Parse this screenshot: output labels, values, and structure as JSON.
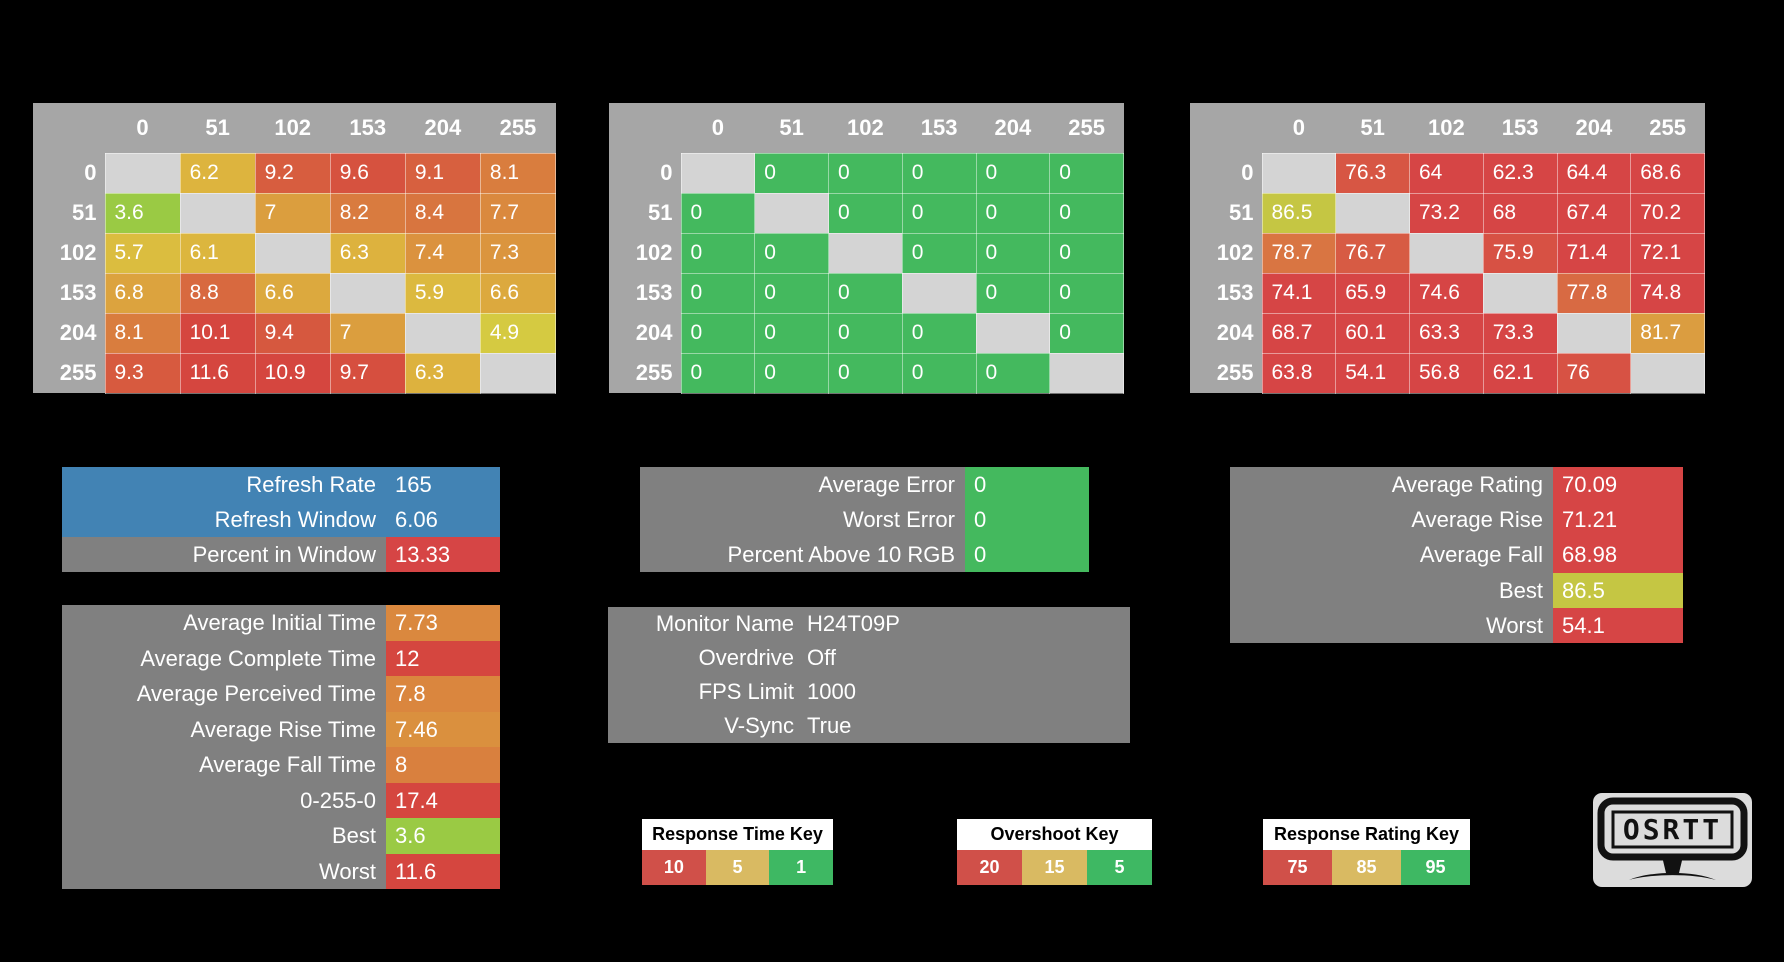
{
  "colors": {
    "background": "#000000",
    "header_grey": "#a6a6a6",
    "box_grey": "#808080",
    "diagonal_grey": "#d4d4d4",
    "blue": "#4283b4",
    "red": "#d64545",
    "green": "#44b95e",
    "key_red": "#d05049",
    "key_tan": "#d9ba62",
    "key_green": "#3eb863"
  },
  "scales": {
    "response_time": {
      "stops": [
        {
          "v": 1,
          "c": "#52c03a"
        },
        {
          "v": 3.6,
          "c": "#9aca44"
        },
        {
          "v": 5,
          "c": "#d9ca41"
        },
        {
          "v": 6.3,
          "c": "#ddb23e"
        },
        {
          "v": 10,
          "c": "#d5463f"
        }
      ]
    },
    "overshoot": {
      "stops": [
        {
          "v": 5,
          "c": "#44b95e"
        },
        {
          "v": 15,
          "c": "#d9ba62"
        },
        {
          "v": 20,
          "c": "#d05049"
        }
      ]
    },
    "response_rating": {
      "stops": [
        {
          "v": 75,
          "c": "#d64545"
        },
        {
          "v": 85,
          "c": "#ddc83e"
        },
        {
          "v": 95,
          "c": "#3fb95f"
        }
      ]
    }
  },
  "tables": {
    "axis": [
      "0",
      "51",
      "102",
      "153",
      "204",
      "255"
    ],
    "response_time": {
      "type": "heatmap",
      "scale": "response_time",
      "rows": [
        [
          null,
          6.2,
          9.2,
          9.6,
          9.1,
          8.1
        ],
        [
          3.6,
          null,
          7,
          8.2,
          8.4,
          7.7
        ],
        [
          5.7,
          6.1,
          null,
          6.3,
          7.4,
          7.3
        ],
        [
          6.8,
          8.8,
          6.6,
          null,
          5.9,
          6.6
        ],
        [
          8.1,
          10.1,
          9.4,
          7,
          null,
          4.9
        ],
        [
          9.3,
          11.6,
          10.9,
          9.7,
          6.3,
          null
        ]
      ]
    },
    "overshoot": {
      "type": "heatmap",
      "scale": "overshoot",
      "rows": [
        [
          null,
          0,
          0,
          0,
          0,
          0
        ],
        [
          0,
          null,
          0,
          0,
          0,
          0
        ],
        [
          0,
          0,
          null,
          0,
          0,
          0
        ],
        [
          0,
          0,
          0,
          null,
          0,
          0
        ],
        [
          0,
          0,
          0,
          0,
          null,
          0
        ],
        [
          0,
          0,
          0,
          0,
          0,
          null
        ]
      ]
    },
    "response_rating": {
      "type": "heatmap",
      "scale": "response_rating",
      "rows": [
        [
          null,
          76.3,
          64,
          62.3,
          64.4,
          68.6
        ],
        [
          86.5,
          null,
          73.2,
          68,
          67.4,
          70.2
        ],
        [
          78.7,
          76.7,
          null,
          75.9,
          71.4,
          72.1
        ],
        [
          74.1,
          65.9,
          74.6,
          null,
          77.8,
          74.8
        ],
        [
          68.7,
          60.1,
          63.3,
          73.3,
          null,
          81.7
        ],
        [
          63.8,
          54.1,
          56.8,
          62.1,
          76,
          null
        ]
      ]
    }
  },
  "stat_boxes": {
    "refresh": {
      "rows": [
        {
          "label": "Refresh Rate",
          "value": "165",
          "row_bg": "#4283b4"
        },
        {
          "label": "Refresh Window",
          "value": "6.06",
          "row_bg": "#4283b4"
        },
        {
          "label": "Percent in Window",
          "value": "13.33",
          "value_bg": "#d64545"
        }
      ]
    },
    "times": {
      "rows": [
        {
          "label": "Average Initial Time",
          "value": 7.73,
          "scale": "response_time"
        },
        {
          "label": "Average Complete Time",
          "value": 12,
          "scale": "response_time"
        },
        {
          "label": "Average Perceived Time",
          "value": 7.8,
          "scale": "response_time"
        },
        {
          "label": "Average Rise Time",
          "value": 7.46,
          "scale": "response_time"
        },
        {
          "label": "Average Fall Time",
          "value": 8,
          "scale": "response_time"
        },
        {
          "label": "0-255-0",
          "value": 17.4,
          "scale": "response_time"
        },
        {
          "label": "Best",
          "value": 3.6,
          "scale": "response_time"
        },
        {
          "label": "Worst",
          "value": 11.6,
          "scale": "response_time"
        }
      ]
    },
    "errors": {
      "rows": [
        {
          "label": "Average Error",
          "value": 0,
          "scale": "overshoot"
        },
        {
          "label": "Worst Error",
          "value": 0,
          "scale": "overshoot"
        },
        {
          "label": "Percent Above 10 RGB",
          "value": 0,
          "scale": "overshoot"
        }
      ]
    },
    "monitor": {
      "rows": [
        {
          "label": "Monitor Name",
          "value": "H24T09P"
        },
        {
          "label": "Overdrive",
          "value": "Off"
        },
        {
          "label": "FPS Limit",
          "value": "1000"
        },
        {
          "label": "V-Sync",
          "value": "True"
        }
      ]
    },
    "ratings": {
      "rows": [
        {
          "label": "Average Rating",
          "value": 70.09,
          "scale": "response_rating"
        },
        {
          "label": "Average Rise",
          "value": 71.21,
          "scale": "response_rating"
        },
        {
          "label": "Average Fall",
          "value": 68.98,
          "scale": "response_rating"
        },
        {
          "label": "Best",
          "value": 86.5,
          "scale": "response_rating"
        },
        {
          "label": "Worst",
          "value": 54.1,
          "scale": "response_rating"
        }
      ]
    }
  },
  "keys": [
    {
      "title": "Response Time Key",
      "cells": [
        {
          "label": "10",
          "bg": "#d05049"
        },
        {
          "label": "5",
          "bg": "#d9ba62"
        },
        {
          "label": "1",
          "bg": "#3eb863"
        }
      ]
    },
    {
      "title": "Overshoot Key",
      "cells": [
        {
          "label": "20",
          "bg": "#d05049"
        },
        {
          "label": "15",
          "bg": "#d9ba62"
        },
        {
          "label": "5",
          "bg": "#3eb863"
        }
      ]
    },
    {
      "title": "Response Rating Key",
      "cells": [
        {
          "label": "75",
          "bg": "#d05049"
        },
        {
          "label": "85",
          "bg": "#d9ba62"
        },
        {
          "label": "95",
          "bg": "#3eb863"
        }
      ]
    }
  ],
  "logo": {
    "text": "OSRTT"
  }
}
